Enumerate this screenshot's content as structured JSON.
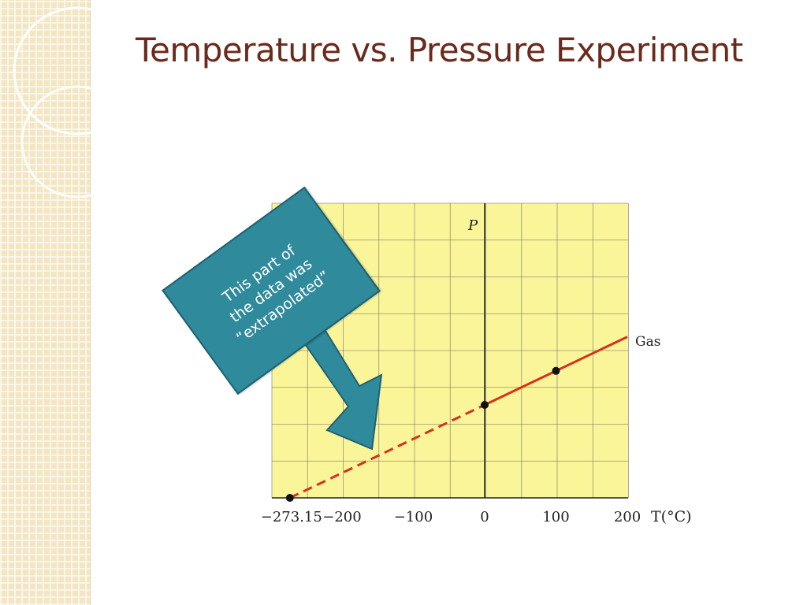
{
  "slide": {
    "title": "Temperature vs. Pressure Experiment",
    "callout_text": "This part of\nthe data was\n“extrapolated”"
  },
  "colors": {
    "title": "#6a2a1c",
    "plot_background": "#fbf59a",
    "grid": "#555555",
    "measured_line": "#d4321c",
    "extrapolated_line": "#d4321c",
    "callout_fill": "#2f8a9c",
    "side_strip": "#f3e6c4"
  },
  "chart_data": {
    "type": "line",
    "title": "",
    "xlabel": "T(°C)",
    "ylabel": "P",
    "xlim": [
      -280,
      200
    ],
    "x_ticks": [
      -273.15,
      -200,
      -100,
      0,
      100,
      200
    ],
    "x_tick_labels": [
      "−273.15",
      "−200",
      "−100",
      "0",
      "100",
      "200"
    ],
    "grid": true,
    "series": [
      {
        "name": "Gas",
        "style": "solid",
        "x": [
          0,
          200
        ],
        "y": [
          1,
          1.732
        ]
      },
      {
        "style": "dashed",
        "x": [
          -273.15,
          0
        ],
        "y": [
          0,
          1
        ]
      }
    ],
    "points": [
      {
        "x": -273.15,
        "y": 0
      },
      {
        "x": 0,
        "y": 1
      },
      {
        "x": 100,
        "y": 1.366
      }
    ]
  }
}
